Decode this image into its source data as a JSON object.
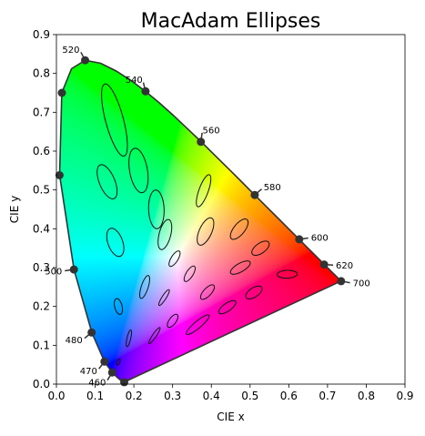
{
  "chart_data": {
    "type": "scatter",
    "title": "MacAdam Ellipses",
    "xlabel": "CIE x",
    "ylabel": "CIE y",
    "xlim": [
      0.0,
      0.9
    ],
    "ylim": [
      0.0,
      0.9
    ],
    "grid": false,
    "x_ticks": [
      "0.0",
      "0.1",
      "0.2",
      "0.3",
      "0.4",
      "0.5",
      "0.6",
      "0.7",
      "0.8",
      "0.9"
    ],
    "y_ticks": [
      "0.0",
      "0.1",
      "0.2",
      "0.3",
      "0.4",
      "0.5",
      "0.6",
      "0.7",
      "0.8",
      "0.9"
    ],
    "wavelength_markers": [
      {
        "label": "460",
        "x": 0.144,
        "y": 0.03
      },
      {
        "label": "470",
        "x": 0.124,
        "y": 0.058
      },
      {
        "label": "480",
        "x": 0.091,
        "y": 0.133
      },
      {
        "label": "500",
        "x": 0.045,
        "y": 0.295
      },
      {
        "label": "520",
        "x": 0.074,
        "y": 0.834
      },
      {
        "label": "540",
        "x": 0.23,
        "y": 0.754
      },
      {
        "label": "560",
        "x": 0.373,
        "y": 0.624
      },
      {
        "label": "580",
        "x": 0.512,
        "y": 0.487
      },
      {
        "label": "600",
        "x": 0.627,
        "y": 0.373
      },
      {
        "label": "620",
        "x": 0.691,
        "y": 0.308
      },
      {
        "label": "700",
        "x": 0.735,
        "y": 0.265
      }
    ],
    "unlabeled_markers": [
      {
        "x": 0.175,
        "y": 0.005
      },
      {
        "x": 0.008,
        "y": 0.538
      },
      {
        "x": 0.014,
        "y": 0.75
      }
    ],
    "locus": [
      [
        0.1741,
        0.005
      ],
      [
        0.1738,
        0.0049
      ],
      [
        0.173,
        0.0048
      ],
      [
        0.1714,
        0.0051
      ],
      [
        0.1689,
        0.0069
      ],
      [
        0.1644,
        0.0109
      ],
      [
        0.1566,
        0.0177
      ],
      [
        0.144,
        0.0297
      ],
      [
        0.1241,
        0.0578
      ],
      [
        0.0913,
        0.1327
      ],
      [
        0.0454,
        0.295
      ],
      [
        0.0082,
        0.5384
      ],
      [
        0.0139,
        0.7502
      ],
      [
        0.0389,
        0.812
      ],
      [
        0.0743,
        0.8338
      ],
      [
        0.1142,
        0.8262
      ],
      [
        0.1547,
        0.8059
      ],
      [
        0.1929,
        0.7816
      ],
      [
        0.2296,
        0.7543
      ],
      [
        0.2658,
        0.7243
      ],
      [
        0.3016,
        0.6923
      ],
      [
        0.3373,
        0.6589
      ],
      [
        0.3731,
        0.6245
      ],
      [
        0.4087,
        0.5896
      ],
      [
        0.4441,
        0.5547
      ],
      [
        0.4788,
        0.5202
      ],
      [
        0.5125,
        0.4866
      ],
      [
        0.5448,
        0.4544
      ],
      [
        0.5752,
        0.4242
      ],
      [
        0.6029,
        0.3965
      ],
      [
        0.627,
        0.3725
      ],
      [
        0.6482,
        0.3514
      ],
      [
        0.6658,
        0.334
      ],
      [
        0.6801,
        0.3197
      ],
      [
        0.6915,
        0.3083
      ],
      [
        0.7006,
        0.2993
      ],
      [
        0.7079,
        0.292
      ],
      [
        0.714,
        0.2859
      ],
      [
        0.719,
        0.2809
      ],
      [
        0.723,
        0.277
      ],
      [
        0.726,
        0.274
      ],
      [
        0.7283,
        0.2717
      ],
      [
        0.73,
        0.27
      ],
      [
        0.732,
        0.268
      ],
      [
        0.7347,
        0.2653
      ]
    ],
    "ellipses": [
      {
        "cx": 0.16,
        "cy": 0.057,
        "a": 0.0085,
        "b": 0.0035,
        "angle": 62.5
      },
      {
        "cx": 0.187,
        "cy": 0.118,
        "a": 0.022,
        "b": 0.005,
        "angle": 77.0
      },
      {
        "cx": 0.253,
        "cy": 0.125,
        "a": 0.025,
        "b": 0.005,
        "angle": 55.5
      },
      {
        "cx": 0.15,
        "cy": 0.68,
        "a": 0.096,
        "b": 0.023,
        "angle": 105.0
      },
      {
        "cx": 0.131,
        "cy": 0.521,
        "a": 0.047,
        "b": 0.02,
        "angle": 112.5
      },
      {
        "cx": 0.212,
        "cy": 0.55,
        "a": 0.058,
        "b": 0.023,
        "angle": 100.0
      },
      {
        "cx": 0.258,
        "cy": 0.45,
        "a": 0.05,
        "b": 0.02,
        "angle": 92.0
      },
      {
        "cx": 0.152,
        "cy": 0.365,
        "a": 0.038,
        "b": 0.019,
        "angle": 110.0
      },
      {
        "cx": 0.28,
        "cy": 0.385,
        "a": 0.04,
        "b": 0.015,
        "angle": 75.5
      },
      {
        "cx": 0.38,
        "cy": 0.498,
        "a": 0.044,
        "b": 0.012,
        "angle": 70.0
      },
      {
        "cx": 0.16,
        "cy": 0.2,
        "a": 0.021,
        "b": 0.0095,
        "angle": 104.0
      },
      {
        "cx": 0.228,
        "cy": 0.25,
        "a": 0.031,
        "b": 0.009,
        "angle": 72.0
      },
      {
        "cx": 0.305,
        "cy": 0.323,
        "a": 0.023,
        "b": 0.009,
        "angle": 58.0
      },
      {
        "cx": 0.385,
        "cy": 0.393,
        "a": 0.038,
        "b": 0.016,
        "angle": 65.5
      },
      {
        "cx": 0.472,
        "cy": 0.399,
        "a": 0.032,
        "b": 0.014,
        "angle": 51.0
      },
      {
        "cx": 0.527,
        "cy": 0.35,
        "a": 0.026,
        "b": 0.013,
        "angle": 35.5
      },
      {
        "cx": 0.475,
        "cy": 0.3,
        "a": 0.029,
        "b": 0.011,
        "angle": 29.5
      },
      {
        "cx": 0.51,
        "cy": 0.236,
        "a": 0.024,
        "b": 0.012,
        "angle": 33.0
      },
      {
        "cx": 0.596,
        "cy": 0.283,
        "a": 0.026,
        "b": 0.01,
        "angle": 2.0
      },
      {
        "cx": 0.344,
        "cy": 0.284,
        "a": 0.023,
        "b": 0.009,
        "angle": 58.0
      },
      {
        "cx": 0.39,
        "cy": 0.237,
        "a": 0.024,
        "b": 0.01,
        "angle": 47.0
      },
      {
        "cx": 0.441,
        "cy": 0.198,
        "a": 0.026,
        "b": 0.01,
        "angle": 34.5
      },
      {
        "cx": 0.278,
        "cy": 0.223,
        "a": 0.024,
        "b": 0.0055,
        "angle": 57.5
      },
      {
        "cx": 0.3,
        "cy": 0.163,
        "a": 0.02,
        "b": 0.009,
        "angle": 54.0
      },
      {
        "cx": 0.365,
        "cy": 0.153,
        "a": 0.038,
        "b": 0.009,
        "angle": 40.0
      }
    ]
  }
}
